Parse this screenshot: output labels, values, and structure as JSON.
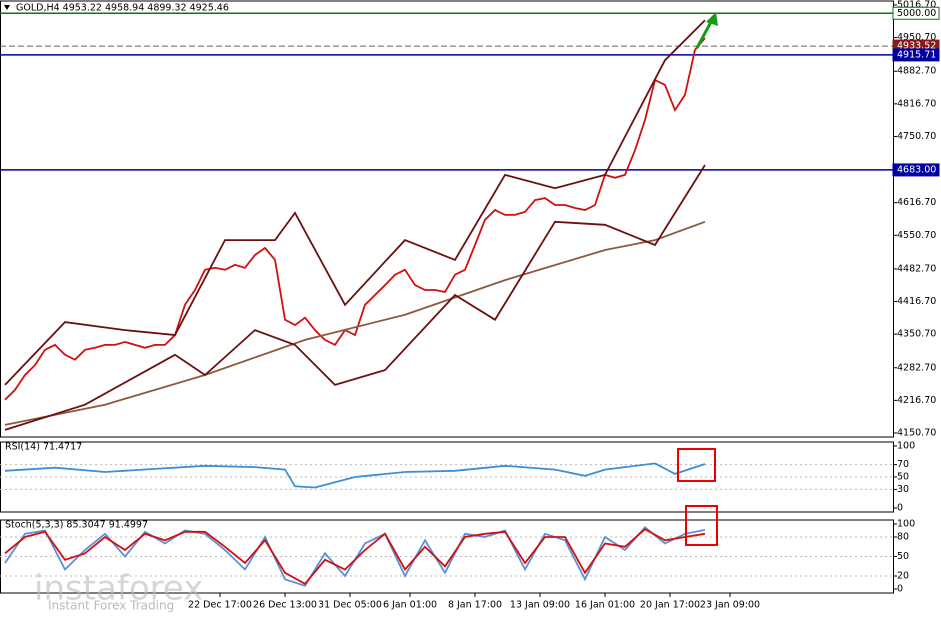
{
  "header": {
    "title": "GOLD,H4  4953.22 4958.94 4899.32 4925.46"
  },
  "watermark": {
    "brand": "instaforex",
    "tagline": "Instant Forex Trading"
  },
  "chart_data": [
    {
      "type": "line",
      "xlim": [
        -0.5,
        88.8
      ],
      "ylim": [
        4150.7,
        5016.7
      ],
      "yticks": [
        {
          "value": 5016.7,
          "label": "5016.70"
        },
        {
          "value": 4950.7,
          "label": "4950.70"
        },
        {
          "value": 4882.7,
          "label": "4882.70"
        },
        {
          "value": 4816.7,
          "label": "4816.70"
        },
        {
          "value": 4750.7,
          "label": "4750.70"
        },
        {
          "value": 4616.7,
          "label": "4616.70"
        },
        {
          "value": 4550.7,
          "label": "4550.70"
        },
        {
          "value": 4482.7,
          "label": "4482.70"
        },
        {
          "value": 4416.7,
          "label": "4416.70"
        },
        {
          "value": 4350.7,
          "label": "4350.70"
        },
        {
          "value": 4282.7,
          "label": "4282.70"
        },
        {
          "value": 4216.7,
          "label": "4216.70"
        },
        {
          "value": 4150.7,
          "label": "4150.70"
        }
      ],
      "levels": [
        {
          "value": 5000,
          "label": "5000.00",
          "color": "#0a7a0a",
          "dashed": false
        },
        {
          "value": 4933.52,
          "label": "4933.52",
          "color": "#8b1a1a",
          "dashed": true
        },
        {
          "value": 4915.71,
          "label": "4915.71",
          "color": "#0000a0",
          "dashed": false
        },
        {
          "value": 4683,
          "label": "4683.00",
          "color": "#0000a0",
          "dashed": false
        }
      ],
      "series": [
        {
          "color": "#d01010",
          "x": [
            0,
            1,
            2,
            3,
            4,
            5,
            6,
            7,
            8,
            9,
            10,
            11,
            12,
            13,
            14,
            15,
            16,
            17,
            18,
            19,
            20,
            21,
            22,
            23,
            24,
            25,
            26,
            27,
            28,
            29,
            30,
            31,
            32,
            33,
            34,
            35,
            36,
            37,
            38,
            39,
            40,
            41,
            42,
            43,
            44,
            45,
            46,
            47,
            48,
            49,
            50,
            51,
            52,
            53,
            54,
            55,
            56,
            57,
            58,
            59,
            60,
            61,
            62,
            63,
            64,
            65,
            66,
            67,
            68,
            69,
            70
          ],
          "values": [
            4218,
            4238,
            4268,
            4288,
            4319,
            4329,
            4309,
            4299,
            4319,
            4323,
            4329,
            4329,
            4335,
            4329,
            4323,
            4329,
            4329,
            4349,
            4410,
            4440,
            4481,
            4485,
            4481,
            4491,
            4485,
            4511,
            4525,
            4501,
            4380,
            4369,
            4384,
            4359,
            4339,
            4329,
            4359,
            4349,
            4410,
            4430,
            4450,
            4471,
            4481,
            4450,
            4440,
            4440,
            4436,
            4471,
            4481,
            4531,
            4582,
            4602,
            4592,
            4592,
            4598,
            4622,
            4626,
            4612,
            4612,
            4606,
            4602,
            4612,
            4673,
            4667,
            4673,
            4723,
            4784,
            4865,
            4855,
            4804,
            4835,
            4926,
            4950
          ]
        },
        {
          "color": "#8b5a3c",
          "x": [
            0,
            10,
            20,
            30,
            40,
            50,
            60,
            65,
            70
          ],
          "values": [
            4167,
            4208,
            4268,
            4339,
            4390,
            4460,
            4521,
            4541,
            4578
          ]
        },
        {
          "color": "#6b0f0f",
          "x": [
            0,
            6,
            12,
            17,
            22,
            27,
            29,
            34,
            40,
            45,
            50,
            55,
            60,
            66,
            70
          ],
          "values": [
            4248,
            4375,
            4359,
            4349,
            4541,
            4541,
            4596,
            4410,
            4541,
            4501,
            4673,
            4646,
            4673,
            4905,
            4986
          ]
        },
        {
          "color": "#6b0f0f",
          "x": [
            0,
            8,
            17,
            20,
            25,
            29,
            33,
            38,
            45,
            49,
            55,
            60,
            65,
            70
          ],
          "values": [
            4157,
            4208,
            4309,
            4268,
            4359,
            4329,
            4248,
            4278,
            4430,
            4380,
            4578,
            4572,
            4531,
            4693
          ]
        }
      ]
    },
    {
      "type": "line",
      "title": "RSI(14) 71.4717",
      "xlim": [
        -0.5,
        88.8
      ],
      "ylim": [
        0,
        100
      ],
      "yticks": [
        100,
        70,
        50,
        30,
        0
      ],
      "series": [
        {
          "color": "#3a8fd8",
          "x": [
            0,
            5,
            10,
            15,
            20,
            25,
            28,
            29,
            31,
            35,
            40,
            45,
            50,
            55,
            58,
            60,
            65,
            67,
            70
          ],
          "values": [
            60,
            65,
            58,
            63,
            68,
            66,
            62,
            35,
            33,
            50,
            58,
            60,
            68,
            62,
            52,
            62,
            72,
            55,
            71
          ]
        }
      ]
    },
    {
      "type": "line",
      "title": "Stoch(5,3,3) 85.3047 91.4997",
      "xlim": [
        -0.5,
        88.8
      ],
      "ylim": [
        0,
        100
      ],
      "yticks": [
        100,
        80,
        50,
        20,
        0
      ],
      "xticks": [
        {
          "value": 21.5,
          "label": "22 Dec 17:00"
        },
        {
          "value": 28,
          "label": "26 Dec 13:00"
        },
        {
          "value": 34.5,
          "label": "31 Dec 05:00"
        },
        {
          "value": 40.5,
          "label": "6 Jan 01:00"
        },
        {
          "value": 47,
          "label": "8 Jan 17:00"
        },
        {
          "value": 53.5,
          "label": "13 Jan 09:00"
        },
        {
          "value": 60,
          "label": "16 Jan 01:00"
        },
        {
          "value": 66.5,
          "label": "20 Jan 17:00"
        },
        {
          "value": 72.5,
          "label": "23 Jan 09:00"
        }
      ],
      "series": [
        {
          "color": "#5b8fd6",
          "x": [
            0,
            2,
            4,
            6,
            8,
            10,
            12,
            14,
            16,
            18,
            20,
            22,
            24,
            26,
            28,
            30,
            32,
            34,
            36,
            38,
            40,
            42,
            44,
            46,
            48,
            50,
            52,
            54,
            56,
            58,
            60,
            62,
            64,
            66,
            68,
            70
          ],
          "values": [
            40,
            85,
            90,
            30,
            60,
            85,
            50,
            88,
            70,
            90,
            85,
            60,
            30,
            80,
            15,
            5,
            55,
            20,
            70,
            85,
            20,
            75,
            25,
            85,
            80,
            90,
            30,
            85,
            75,
            15,
            80,
            60,
            95,
            70,
            85,
            91
          ]
        },
        {
          "color": "#d01010",
          "x": [
            0,
            2,
            4,
            6,
            8,
            10,
            12,
            14,
            16,
            18,
            20,
            22,
            24,
            26,
            28,
            30,
            32,
            34,
            36,
            38,
            40,
            42,
            44,
            46,
            48,
            50,
            52,
            54,
            56,
            58,
            60,
            62,
            64,
            66,
            68,
            70
          ],
          "values": [
            55,
            80,
            88,
            45,
            55,
            80,
            60,
            85,
            75,
            88,
            88,
            65,
            40,
            75,
            25,
            8,
            45,
            30,
            60,
            85,
            30,
            65,
            35,
            80,
            85,
            88,
            40,
            80,
            80,
            25,
            70,
            65,
            92,
            75,
            80,
            85
          ]
        }
      ]
    }
  ]
}
